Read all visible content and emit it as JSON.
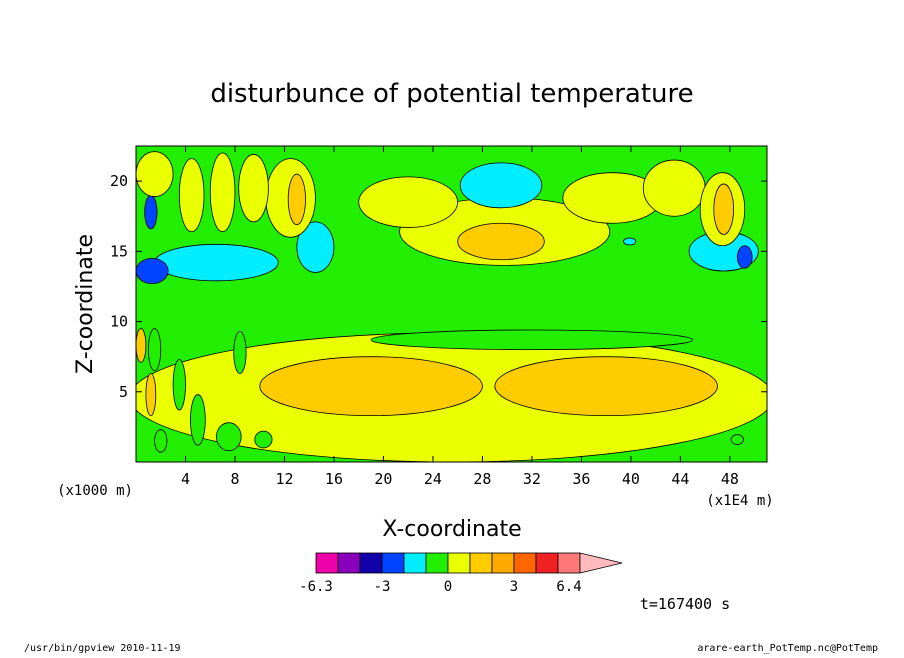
{
  "chart_data": {
    "type": "heatmap",
    "title": "disturbunce of potential temperature",
    "xlabel": "X-coordinate",
    "ylabel": "Z-coordinate",
    "x_unit": "(x1E4 m)",
    "y_unit": "(x1000 m)",
    "xlim": [
      0,
      51
    ],
    "ylim": [
      0,
      22.5
    ],
    "x_ticks": [
      4,
      8,
      12,
      16,
      20,
      24,
      28,
      32,
      36,
      40,
      44,
      48
    ],
    "x_tick_labels": [
      "4",
      "8",
      "12",
      "16",
      "20",
      "24",
      "28",
      "32",
      "36",
      "40",
      "44",
      "48"
    ],
    "y_ticks": [
      5,
      10,
      15,
      20
    ],
    "y_tick_labels": [
      "5",
      "10",
      "15",
      "20"
    ],
    "background_level": "0",
    "regions": [
      {
        "level": "1.5",
        "color": "#eaff00",
        "kind": "ellipse",
        "cx": 25.5,
        "cy": 4.6,
        "rx": 26,
        "ry": 4.6
      },
      {
        "level": "0",
        "color": "#22ee00",
        "kind": "ellipse",
        "cx": 32,
        "cy": 8.7,
        "rx": 13,
        "ry": 0.7
      },
      {
        "level": "3",
        "color": "#ffcc00",
        "kind": "ellipse",
        "cx": 19,
        "cy": 5.4,
        "rx": 9,
        "ry": 2.1
      },
      {
        "level": "3",
        "color": "#ffcc00",
        "kind": "ellipse",
        "cx": 38,
        "cy": 5.4,
        "rx": 9,
        "ry": 2.1
      },
      {
        "level": "0",
        "color": "#22ee00",
        "kind": "ellipse",
        "cx": 10.3,
        "cy": 1.6,
        "rx": 0.7,
        "ry": 0.6
      },
      {
        "level": "0",
        "color": "#22ee00",
        "kind": "ellipse",
        "cx": 48.6,
        "cy": 1.6,
        "rx": 0.5,
        "ry": 0.35
      },
      {
        "level": "1.5",
        "color": "#eaff00",
        "kind": "ellipse",
        "cx": 29.8,
        "cy": 16.4,
        "rx": 8.5,
        "ry": 2.4
      },
      {
        "level": "1.5",
        "color": "#eaff00",
        "kind": "ellipse",
        "cx": 22,
        "cy": 18.5,
        "rx": 4,
        "ry": 1.8
      },
      {
        "level": "1.5",
        "color": "#eaff00",
        "kind": "ellipse",
        "cx": 38.5,
        "cy": 18.8,
        "rx": 4,
        "ry": 1.8
      },
      {
        "level": "1.5",
        "color": "#eaff00",
        "kind": "ellipse",
        "cx": 43.5,
        "cy": 19.5,
        "rx": 2.5,
        "ry": 2
      },
      {
        "level": "3",
        "color": "#ffcc00",
        "kind": "ellipse",
        "cx": 29.5,
        "cy": 15.7,
        "rx": 3.5,
        "ry": 1.3
      },
      {
        "level": "-1.5",
        "color": "#00eeff",
        "kind": "ellipse",
        "cx": 29.5,
        "cy": 19.7,
        "rx": 3.3,
        "ry": 1.6
      },
      {
        "level": "-1.5",
        "color": "#00eeff",
        "kind": "ellipse",
        "cx": 39.9,
        "cy": 15.7,
        "rx": 0.5,
        "ry": 0.25
      },
      {
        "level": "-1.5",
        "color": "#00eeff",
        "kind": "ellipse",
        "cx": 47.5,
        "cy": 15,
        "rx": 2.8,
        "ry": 1.4
      },
      {
        "level": "-1.5",
        "color": "#00eeff",
        "kind": "ellipse",
        "cx": 6.5,
        "cy": 14.2,
        "rx": 5,
        "ry": 1.3
      },
      {
        "level": "-1.5",
        "color": "#00eeff",
        "kind": "ellipse",
        "cx": 14.5,
        "cy": 15.3,
        "rx": 1.5,
        "ry": 1.8
      },
      {
        "level": "-3",
        "color": "#0044ff",
        "kind": "ellipse",
        "cx": 1.3,
        "cy": 13.6,
        "rx": 1.3,
        "ry": 0.9
      },
      {
        "level": "-3",
        "color": "#0044ff",
        "kind": "ellipse",
        "cx": 49.2,
        "cy": 14.6,
        "rx": 0.6,
        "ry": 0.8
      },
      {
        "level": "-3",
        "color": "#0044ff",
        "kind": "ellipse",
        "cx": 1.2,
        "cy": 17.8,
        "rx": 0.5,
        "ry": 1.2
      },
      {
        "level": "1.5",
        "color": "#eaff00",
        "kind": "ellipse",
        "cx": 12.5,
        "cy": 18.8,
        "rx": 2,
        "ry": 2.8
      },
      {
        "level": "3",
        "color": "#ffcc00",
        "kind": "ellipse",
        "cx": 13,
        "cy": 18.7,
        "rx": 0.7,
        "ry": 1.8
      },
      {
        "level": "1.5",
        "color": "#eaff00",
        "kind": "ellipse",
        "cx": 47.4,
        "cy": 18,
        "rx": 1.8,
        "ry": 2.6
      },
      {
        "level": "3",
        "color": "#ffcc00",
        "kind": "ellipse",
        "cx": 47.5,
        "cy": 18,
        "rx": 0.8,
        "ry": 1.8
      },
      {
        "level": "1.5",
        "color": "#eaff00",
        "kind": "ellipse",
        "cx": 1.5,
        "cy": 20.5,
        "rx": 1.5,
        "ry": 1.6
      },
      {
        "level": "1.5",
        "color": "#eaff00",
        "kind": "ellipse",
        "cx": 4.5,
        "cy": 19,
        "rx": 1,
        "ry": 2.6
      },
      {
        "level": "1.5",
        "color": "#eaff00",
        "kind": "ellipse",
        "cx": 7,
        "cy": 19.2,
        "rx": 1,
        "ry": 2.8
      },
      {
        "level": "1.5",
        "color": "#eaff00",
        "kind": "ellipse",
        "cx": 9.5,
        "cy": 19.5,
        "rx": 1.2,
        "ry": 2.4
      },
      {
        "level": "0",
        "color": "#22ee00",
        "kind": "ellipse",
        "cx": 1.5,
        "cy": 8,
        "rx": 0.5,
        "ry": 1.5
      },
      {
        "level": "0",
        "color": "#22ee00",
        "kind": "ellipse",
        "cx": 3.5,
        "cy": 5.5,
        "rx": 0.5,
        "ry": 1.8
      },
      {
        "level": "0",
        "color": "#22ee00",
        "kind": "ellipse",
        "cx": 5,
        "cy": 3,
        "rx": 0.6,
        "ry": 1.8
      },
      {
        "level": "0",
        "color": "#22ee00",
        "kind": "ellipse",
        "cx": 2,
        "cy": 1.5,
        "rx": 0.5,
        "ry": 0.8
      },
      {
        "level": "0",
        "color": "#22ee00",
        "kind": "ellipse",
        "cx": 7.5,
        "cy": 1.8,
        "rx": 1,
        "ry": 1
      },
      {
        "level": "3",
        "color": "#ffcc00",
        "kind": "ellipse",
        "cx": 1.2,
        "cy": 4.8,
        "rx": 0.4,
        "ry": 1.5
      },
      {
        "level": "3",
        "color": "#ffcc00",
        "kind": "ellipse",
        "cx": 0.4,
        "cy": 8.3,
        "rx": 0.4,
        "ry": 1.2
      },
      {
        "level": "0",
        "color": "#22ee00",
        "kind": "ellipse",
        "cx": 8.4,
        "cy": 7.8,
        "rx": 0.5,
        "ry": 1.5
      }
    ],
    "colorbar": {
      "levels": [
        -6.3,
        -5,
        -4,
        -3,
        -2,
        -1,
        0,
        1,
        2,
        3,
        4,
        5,
        6.4
      ],
      "colors": [
        "#ee00aa",
        "#8800bb",
        "#1100aa",
        "#0044ff",
        "#00eeff",
        "#22ee00",
        "#eaff00",
        "#ffcc00",
        "#ffaa00",
        "#ff6600",
        "#ee2222",
        "#ff7777",
        "#ffbbbb"
      ],
      "tick_labels": [
        "-6.3",
        "-3",
        "0",
        "3",
        "6.4"
      ]
    },
    "annotation": "t=167400 s"
  },
  "footer": {
    "left": "/usr/bin/gpview   2010-11-19",
    "right": "arare-earth_PotTemp.nc@PotTemp"
  }
}
